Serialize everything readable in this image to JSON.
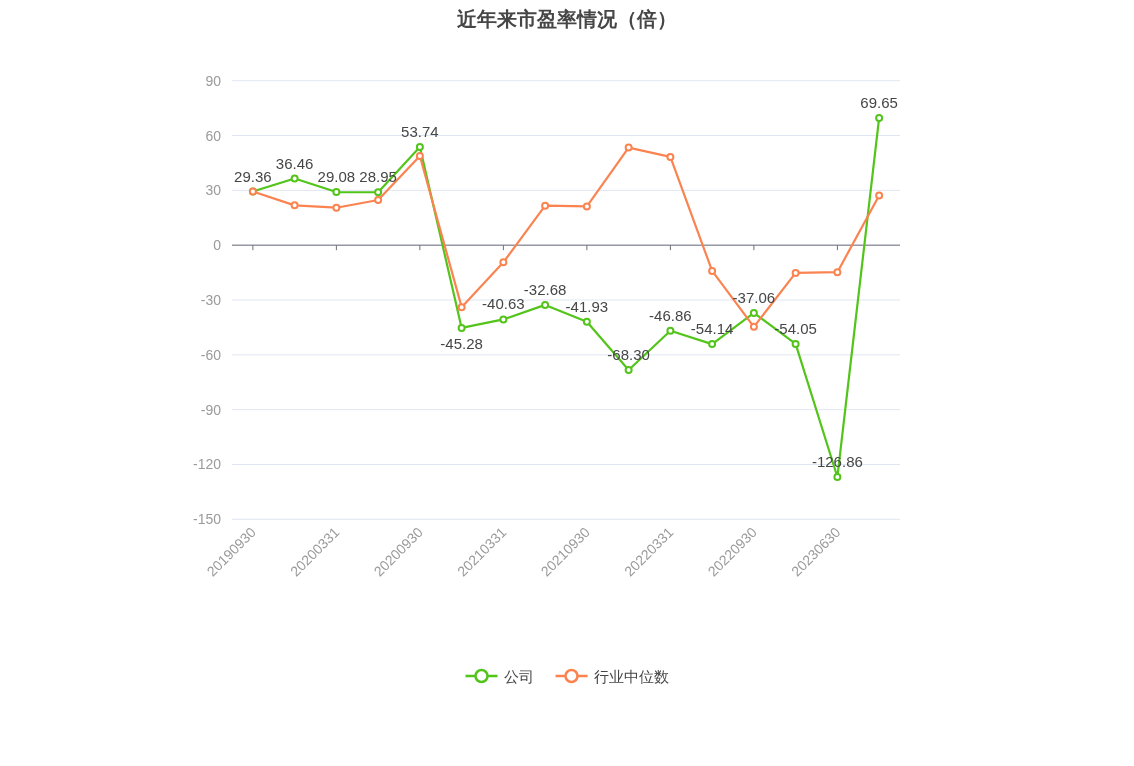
{
  "chart_data": {
    "type": "line",
    "title": "近年来市盈率情况（倍）",
    "categories": [
      "20190930",
      null,
      "20200331",
      null,
      "20200930",
      null,
      "20210331",
      null,
      "20210930",
      null,
      "20220331",
      null,
      "20220930",
      null,
      "20230630",
      null
    ],
    "series": [
      {
        "name": "公司",
        "color": "#52c41a",
        "values": [
          29.36,
          36.46,
          29.08,
          28.95,
          53.74,
          -45.28,
          -40.63,
          -32.68,
          -41.93,
          -68.3,
          -46.86,
          -54.14,
          -37.06,
          -54.05,
          -126.86,
          69.65
        ],
        "value_labels": [
          "29.36",
          "36.46",
          "29.08",
          "28.95",
          "53.74",
          "-45.28",
          "-40.63",
          "-32.68",
          "-41.93",
          "-68.30",
          "-46.86",
          "-54.14",
          "-37.06",
          "-54.05",
          "-126.86",
          "69.65"
        ]
      },
      {
        "name": "行业中位数",
        "color": "#fa8350",
        "values": [
          29.4,
          21.8,
          20.5,
          24.7,
          48.8,
          -33.9,
          -9.4,
          21.6,
          21.2,
          53.4,
          48.3,
          -14.1,
          -44.7,
          -15.2,
          -14.8,
          27.2
        ]
      }
    ],
    "ylim": [
      -150,
      90
    ],
    "yticks": [
      -150,
      -120,
      -90,
      -60,
      -30,
      0,
      30,
      60,
      90
    ],
    "grid": "y",
    "legend": "bottom",
    "marker": "circle",
    "line_style": "solid"
  }
}
